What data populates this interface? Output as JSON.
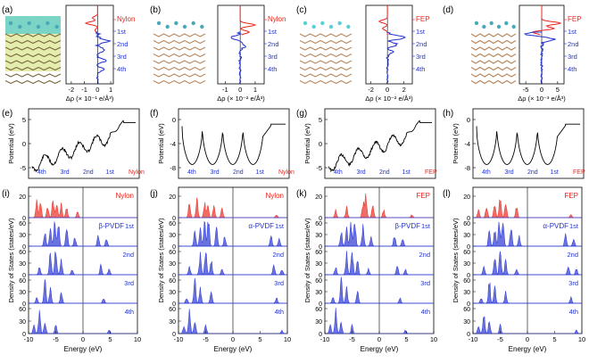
{
  "panels": {
    "a": {
      "letter": "(a)",
      "material": "Nylon",
      "xlabel": "Δρ (× 10⁻¹ e/Å³)",
      "ticks": [
        "-2",
        "-1",
        "0",
        "1"
      ]
    },
    "b": {
      "letter": "(b)",
      "material": "Nylon",
      "xlabel": "Δρ (× 10⁻² e/Å³)",
      "ticks": [
        "-1",
        "0",
        "1"
      ]
    },
    "c": {
      "letter": "(c)",
      "material": "FEP",
      "xlabel": "Δρ (× 10⁻² e/Å³)",
      "ticks": [
        "-2",
        "0",
        "2"
      ]
    },
    "d": {
      "letter": "(d)",
      "material": "FEP",
      "xlabel": "Δρ (× 10⁻³ e/Å³)",
      "ticks": [
        "-5",
        "0",
        "5"
      ]
    },
    "e": {
      "letter": "(e)",
      "ylabel": "Potential (eV)",
      "yticks": [
        "5",
        "0",
        "-5"
      ],
      "layers": [
        "4th",
        "3rd",
        "2nd",
        "1st",
        "Nylon"
      ]
    },
    "f": {
      "letter": "(f)",
      "ylabel": "Potential (eV)",
      "yticks": [
        "0",
        "-4",
        "-8"
      ],
      "layers": [
        "4th",
        "3rd",
        "2nd",
        "1st",
        "Nylon"
      ]
    },
    "g": {
      "letter": "(g)",
      "ylabel": "Potential (eV)",
      "yticks": [
        "5",
        "0",
        "-5"
      ],
      "layers": [
        "4th",
        "3rd",
        "2nd",
        "1st",
        "FEP"
      ]
    },
    "h": {
      "letter": "(h)",
      "ylabel": "Potential (eV)",
      "yticks": [
        "0",
        "-4",
        "-8"
      ],
      "layers": [
        "4th",
        "3rd",
        "2nd",
        "1st",
        "FEP"
      ]
    },
    "i": {
      "letter": "(i)",
      "material": "Nylon",
      "phase": "β-PVDF",
      "xlabel": "Energy (eV)",
      "ylabel": "Density of States (states/eV)"
    },
    "j": {
      "letter": "(j)",
      "material": "Nylon",
      "phase": "α-PVDF",
      "xlabel": "Energy (eV)",
      "ylabel": "Density of States (states/eV)"
    },
    "k": {
      "letter": "(k)",
      "material": "FEP",
      "phase": "β-PVDF",
      "xlabel": "Energy (eV)",
      "ylabel": "Density of States (states/eV)"
    },
    "l": {
      "letter": "(l)",
      "material": "FEP",
      "phase": "α-PVDF",
      "xlabel": "Energy (eV)",
      "ylabel": "Density of States (states/eV)"
    }
  },
  "layer_labels": [
    "1st",
    "2nd",
    "3rd",
    "4th"
  ],
  "dos_xticks": [
    "-10",
    "-5",
    "0",
    "5",
    "10"
  ],
  "dos_yticks_top": [
    "20",
    "0"
  ],
  "dos_yticks": [
    "60",
    "30",
    "0"
  ],
  "colors": {
    "red": "#e8251c",
    "blue": "#2233cc",
    "dos_red": "#ee3b33",
    "dos_blue": "#3a44d6",
    "axis": "#000000"
  }
}
